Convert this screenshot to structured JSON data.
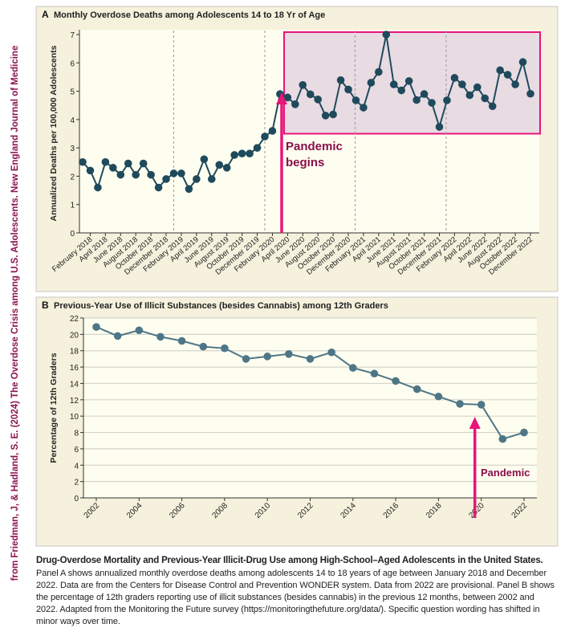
{
  "source_note": "from Friedman, J, & Hadland, S. E. (2024) The Overdose Crisis among U.S. Adolescents. New England Journal of Medicine",
  "colors": {
    "panel_bg": "#f5f1dc",
    "plot_bg": "#fefef0",
    "panelA_series": "#1f4a5c",
    "panelB_series": "#4f7686",
    "pandemic": "#e8157a",
    "annotation_text": "#8a0f4a",
    "box_fill": "#e8dbe2"
  },
  "chart_data": [
    {
      "panel": "A",
      "type": "line",
      "title": "Monthly Overdose Deaths among Adolescents 14 to 18 Yr of Age",
      "ylabel": "Annualized Deaths per 100,000 Adolescents",
      "xlabel": "",
      "ylim": [
        0,
        7
      ],
      "yticks": [
        0,
        1,
        2,
        3,
        4,
        5,
        6,
        7
      ],
      "grid": false,
      "year_separators": [
        "January 2019",
        "January 2020",
        "January 2021",
        "January 2022"
      ],
      "x_start": "January 2018",
      "x_end": "December 2022",
      "xtick_labels": [
        "February 2018",
        "April 2018",
        "June 2018",
        "August 2018",
        "October 2018",
        "December 2018",
        "February 2019",
        "April 2019",
        "June 2019",
        "August 2019",
        "October 2019",
        "December 2019",
        "February 2020",
        "April 2020",
        "June 2020",
        "August 2020",
        "October 2020",
        "December 2020",
        "February 2021",
        "April 2021",
        "June 2021",
        "August 2021",
        "October 2021",
        "December 2021",
        "February 2022",
        "April 2022",
        "June 2022",
        "August 2022",
        "October 2022",
        "December 2022"
      ],
      "values": [
        2.5,
        2.2,
        1.6,
        2.5,
        2.3,
        2.05,
        2.45,
        2.05,
        2.45,
        2.05,
        1.6,
        1.9,
        2.1,
        2.1,
        1.55,
        1.9,
        2.6,
        1.9,
        2.4,
        2.3,
        2.75,
        2.8,
        2.8,
        3.0,
        3.4,
        3.6,
        4.9,
        4.78,
        4.54,
        5.22,
        4.89,
        4.71,
        4.14,
        4.18,
        5.39,
        5.06,
        4.68,
        4.42,
        5.3,
        5.68,
        7.0,
        5.24,
        5.03,
        5.36,
        4.69,
        4.9,
        4.59,
        3.74,
        4.68,
        5.47,
        5.24,
        4.86,
        5.14,
        4.75,
        4.47,
        5.74,
        5.58,
        5.24,
        6.03,
        4.91
      ],
      "annotation": {
        "line1": "Pandemic",
        "line2": "begins",
        "at": "March 2020"
      },
      "highlight_box": {
        "from": "March 2020",
        "to": "December 2022",
        "ylim": [
          3.5,
          7
        ]
      }
    },
    {
      "panel": "B",
      "type": "line",
      "title": "Previous-Year Use of Illicit Substances (besides Cannabis) among 12th Graders",
      "ylabel": "Percentage of 12th Graders",
      "xlabel": "",
      "ylim": [
        0,
        22
      ],
      "yticks": [
        0,
        2,
        4,
        6,
        8,
        10,
        12,
        14,
        16,
        18,
        20,
        22
      ],
      "grid": true,
      "x": [
        2002,
        2003,
        2004,
        2005,
        2006,
        2007,
        2008,
        2009,
        2010,
        2011,
        2012,
        2013,
        2014,
        2015,
        2016,
        2017,
        2018,
        2019,
        2020,
        2021,
        2022
      ],
      "xtick_labels": [
        "2002",
        "2004",
        "2006",
        "2008",
        "2010",
        "2012",
        "2014",
        "2016",
        "2018",
        "2020",
        "2022"
      ],
      "values": [
        20.9,
        19.8,
        20.5,
        19.7,
        19.2,
        18.5,
        18.3,
        17.0,
        17.3,
        17.6,
        17.0,
        17.8,
        15.9,
        15.2,
        14.3,
        13.3,
        12.4,
        11.5,
        11.4,
        7.2,
        8.0
      ],
      "annotation": {
        "label": "Pandemic",
        "at": 2019.7
      }
    }
  ],
  "caption": {
    "title": "Drug-Overdose Mortality and Previous-Year Illicit-Drug Use among High-School–Aged Adolescents in the United States.",
    "body": "Panel A shows annualized monthly overdose deaths among adolescents 14 to 18 years of age between January 2018 and December 2022. Data are from the Centers for Disease Control and Prevention WONDER system. Data from 2022 are provisional. Panel B shows the percentage of 12th graders reporting use of illicit substances (besides cannabis) in the previous 12 months, between 2002 and 2022. Adapted from the Monitoring the Future survey (https://monitoringthefuture.org/data/). Specific question wording has shifted in minor ways over time."
  }
}
